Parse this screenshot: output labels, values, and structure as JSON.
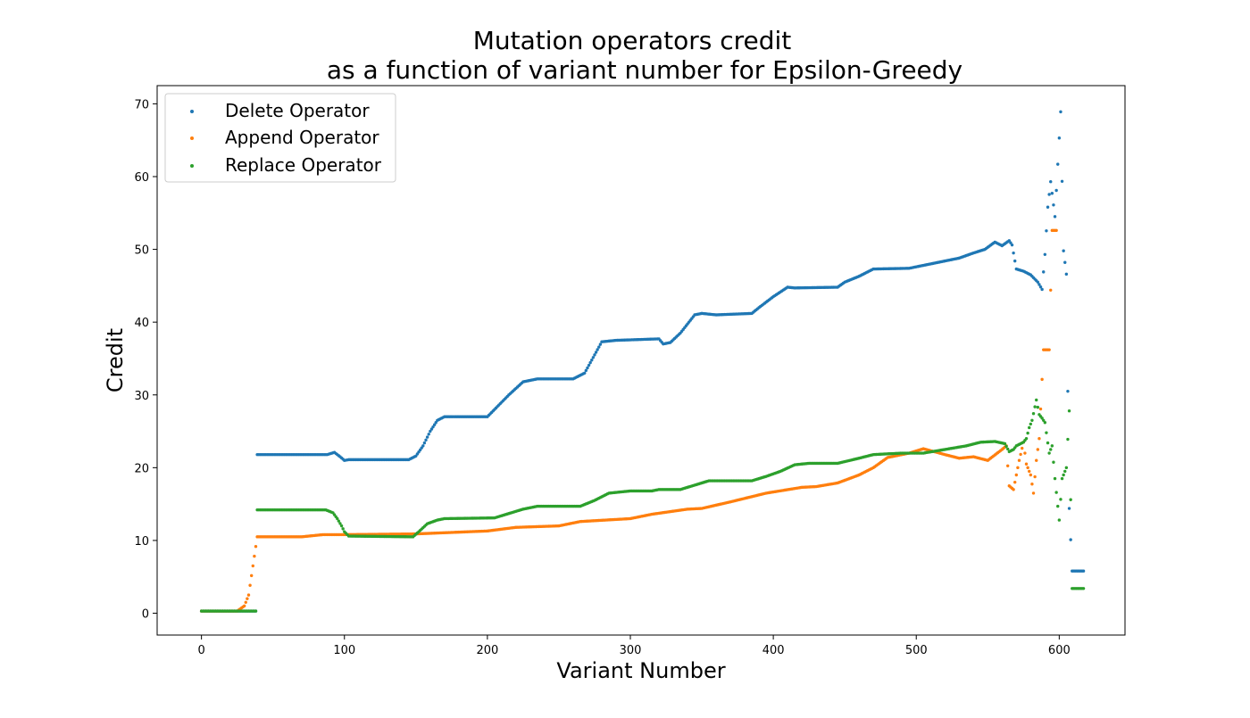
{
  "chart_data": {
    "type": "scatter",
    "title_lines": [
      "Mutation operators credit",
      "as a function of variant number for Epsilon-Greedy"
    ],
    "xlabel": "Variant Number",
    "ylabel": "Credit",
    "xlim": [
      -31,
      646
    ],
    "ylim": [
      -3,
      72.5
    ],
    "xticks": [
      0,
      100,
      200,
      300,
      400,
      500,
      600
    ],
    "yticks": [
      0,
      10,
      20,
      30,
      40,
      50,
      60,
      70
    ],
    "grid": false,
    "legend_position": "top-left",
    "series": [
      {
        "name": "Delete Operator",
        "color": "#1f77b4",
        "anchors": [
          [
            0,
            0.3
          ],
          [
            38,
            0.3
          ],
          [
            39,
            21.8
          ],
          [
            88,
            21.8
          ],
          [
            93,
            22.1
          ],
          [
            97,
            21.5
          ],
          [
            100,
            21.0
          ],
          [
            103,
            21.1
          ],
          [
            145,
            21.1
          ],
          [
            150,
            21.6
          ],
          [
            155,
            23.0
          ],
          [
            160,
            25.0
          ],
          [
            165,
            26.5
          ],
          [
            170,
            27.0
          ],
          [
            200,
            27.0
          ],
          [
            205,
            28.0
          ],
          [
            215,
            30.0
          ],
          [
            225,
            31.8
          ],
          [
            235,
            32.2
          ],
          [
            260,
            32.2
          ],
          [
            268,
            33.0
          ],
          [
            275,
            35.5
          ],
          [
            280,
            37.3
          ],
          [
            290,
            37.5
          ],
          [
            320,
            37.7
          ],
          [
            323,
            37.0
          ],
          [
            328,
            37.2
          ],
          [
            335,
            38.5
          ],
          [
            345,
            41.0
          ],
          [
            350,
            41.2
          ],
          [
            360,
            41.0
          ],
          [
            385,
            41.2
          ],
          [
            390,
            42.0
          ],
          [
            400,
            43.5
          ],
          [
            410,
            44.8
          ],
          [
            415,
            44.7
          ],
          [
            445,
            44.8
          ],
          [
            450,
            45.5
          ],
          [
            460,
            46.3
          ],
          [
            470,
            47.3
          ],
          [
            495,
            47.4
          ],
          [
            500,
            47.6
          ],
          [
            530,
            48.8
          ],
          [
            540,
            49.5
          ],
          [
            548,
            50.0
          ],
          [
            555,
            51.0
          ],
          [
            560,
            50.5
          ],
          [
            565,
            51.2
          ],
          [
            567,
            50.6
          ],
          [
            570,
            47.3
          ],
          [
            575,
            47.0
          ],
          [
            580,
            46.5
          ],
          [
            585,
            45.5
          ],
          [
            588,
            44.5
          ],
          [
            590,
            49.3
          ],
          [
            592,
            55.8
          ],
          [
            594,
            59.3
          ],
          [
            597,
            54.5
          ],
          [
            601,
            68.9
          ],
          [
            603,
            49.8
          ],
          [
            605,
            46.6
          ],
          [
            607,
            14.4
          ],
          [
            609,
            5.8
          ],
          [
            617,
            5.8
          ]
        ]
      },
      {
        "name": "Append Operator",
        "color": "#ff7f0e",
        "anchors": [
          [
            0,
            0.3
          ],
          [
            25,
            0.3
          ],
          [
            30,
            1.0
          ],
          [
            33,
            2.5
          ],
          [
            36,
            6.5
          ],
          [
            39,
            10.5
          ],
          [
            70,
            10.5
          ],
          [
            85,
            10.8
          ],
          [
            100,
            10.8
          ],
          [
            150,
            10.9
          ],
          [
            200,
            11.3
          ],
          [
            220,
            11.8
          ],
          [
            250,
            12.0
          ],
          [
            265,
            12.6
          ],
          [
            300,
            13.0
          ],
          [
            315,
            13.6
          ],
          [
            340,
            14.3
          ],
          [
            350,
            14.4
          ],
          [
            370,
            15.3
          ],
          [
            395,
            16.5
          ],
          [
            420,
            17.3
          ],
          [
            430,
            17.4
          ],
          [
            445,
            17.9
          ],
          [
            460,
            19.0
          ],
          [
            470,
            20.0
          ],
          [
            480,
            21.4
          ],
          [
            495,
            22.0
          ],
          [
            505,
            22.6
          ],
          [
            520,
            21.8
          ],
          [
            530,
            21.3
          ],
          [
            540,
            21.5
          ],
          [
            550,
            21.0
          ],
          [
            560,
            22.5
          ],
          [
            563,
            23.0
          ],
          [
            565,
            17.5
          ],
          [
            568,
            17.0
          ],
          [
            570,
            19.0
          ],
          [
            572,
            21.0
          ],
          [
            575,
            23.5
          ],
          [
            577,
            20.5
          ],
          [
            580,
            19.0
          ],
          [
            582,
            16.5
          ],
          [
            584,
            21.0
          ],
          [
            586,
            24.0
          ],
          [
            589,
            36.2
          ],
          [
            593,
            36.2
          ],
          [
            595,
            52.6
          ],
          [
            598,
            52.6
          ]
        ]
      },
      {
        "name": "Replace Operator",
        "color": "#2ca02c",
        "anchors": [
          [
            0,
            0.3
          ],
          [
            38,
            0.3
          ],
          [
            39,
            14.2
          ],
          [
            87,
            14.2
          ],
          [
            92,
            13.8
          ],
          [
            95,
            13.0
          ],
          [
            98,
            12.0
          ],
          [
            100,
            11.2
          ],
          [
            103,
            10.6
          ],
          [
            148,
            10.5
          ],
          [
            152,
            11.2
          ],
          [
            158,
            12.3
          ],
          [
            165,
            12.8
          ],
          [
            170,
            13.0
          ],
          [
            205,
            13.1
          ],
          [
            215,
            13.7
          ],
          [
            225,
            14.3
          ],
          [
            235,
            14.7
          ],
          [
            265,
            14.7
          ],
          [
            275,
            15.5
          ],
          [
            285,
            16.5
          ],
          [
            300,
            16.8
          ],
          [
            315,
            16.8
          ],
          [
            320,
            17.0
          ],
          [
            335,
            17.0
          ],
          [
            345,
            17.6
          ],
          [
            355,
            18.2
          ],
          [
            385,
            18.2
          ],
          [
            395,
            18.8
          ],
          [
            405,
            19.5
          ],
          [
            415,
            20.4
          ],
          [
            425,
            20.6
          ],
          [
            445,
            20.6
          ],
          [
            460,
            21.3
          ],
          [
            470,
            21.8
          ],
          [
            490,
            22.0
          ],
          [
            505,
            22.0
          ],
          [
            520,
            22.5
          ],
          [
            535,
            23.0
          ],
          [
            545,
            23.5
          ],
          [
            555,
            23.6
          ],
          [
            562,
            23.3
          ],
          [
            565,
            22.2
          ],
          [
            568,
            22.5
          ],
          [
            570,
            23.0
          ],
          [
            575,
            23.5
          ],
          [
            577,
            24.0
          ],
          [
            579,
            25.5
          ],
          [
            581,
            26.5
          ],
          [
            584,
            29.3
          ],
          [
            586,
            27.3
          ],
          [
            588,
            26.8
          ],
          [
            590,
            26.2
          ],
          [
            593,
            22.0
          ],
          [
            595,
            23.0
          ],
          [
            597,
            18.5
          ],
          [
            600,
            12.8
          ],
          [
            602,
            18.5
          ],
          [
            605,
            20.0
          ],
          [
            607,
            27.8
          ],
          [
            609,
            3.4
          ],
          [
            617,
            3.4
          ]
        ]
      }
    ]
  }
}
